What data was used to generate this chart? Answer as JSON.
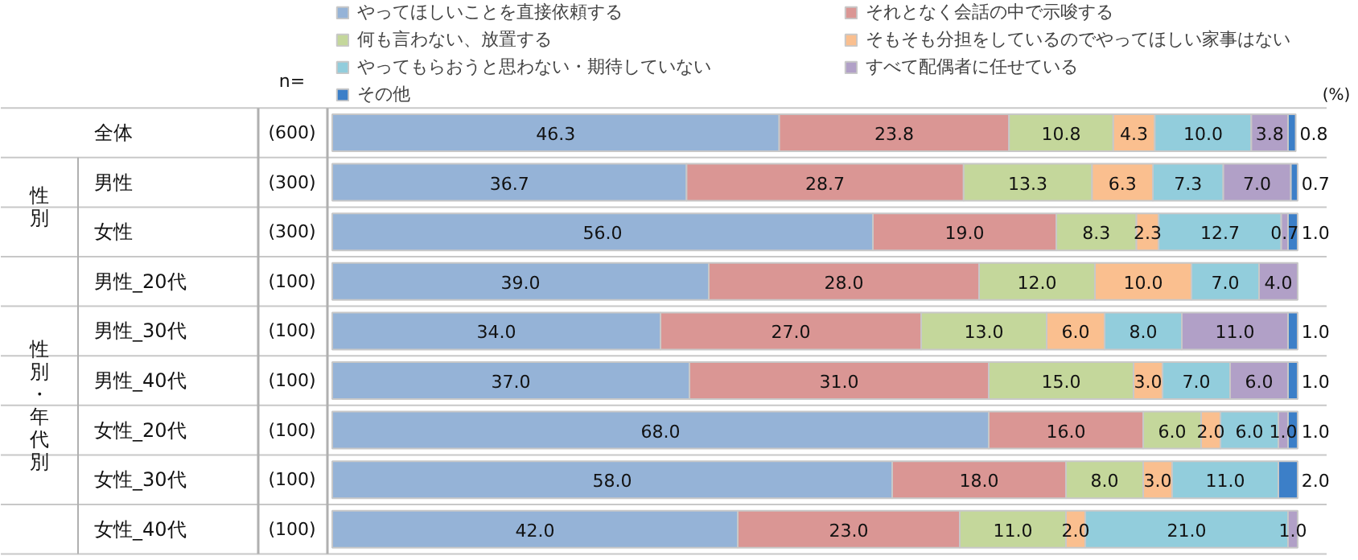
{
  "chart_data": {
    "type": "bar",
    "orientation": "horizontal",
    "stacked": true,
    "legend": "top",
    "categories": [
      "全体",
      "男性",
      "女性",
      "男性_20代",
      "男性_30代",
      "男性_40代",
      "女性_20代",
      "女性_30代",
      "女性_40代"
    ],
    "series": [
      {
        "name": "やってほしいことを直接依頼する",
        "color": "#95b3d7",
        "values": [
          46.3,
          36.7,
          56.0,
          39.0,
          34.0,
          37.0,
          68.0,
          58.0,
          42.0
        ],
        "value_labels": [
          "46.3",
          "36.7",
          "56.0",
          "39.0",
          "34.0",
          "37.0",
          "68.0",
          "58.0",
          "42.0"
        ]
      },
      {
        "name": "それとなく会話の中で示唆する",
        "color": "#da9694",
        "values": [
          23.8,
          28.7,
          19.0,
          28.0,
          27.0,
          31.0,
          16.0,
          18.0,
          23.0
        ],
        "value_labels": [
          "23.8",
          "28.7",
          "19.0",
          "28.0",
          "27.0",
          "31.0",
          "16.0",
          "18.0",
          "23.0"
        ]
      },
      {
        "name": "何も言わない、放置する",
        "color": "#c4d79b",
        "values": [
          10.8,
          13.3,
          8.3,
          12.0,
          13.0,
          15.0,
          6.0,
          8.0,
          11.0
        ],
        "value_labels": [
          "10.8",
          "13.3",
          "8.3",
          "12.0",
          "13.0",
          "15.0",
          "6.0",
          "8.0",
          "11.0"
        ]
      },
      {
        "name": "そもそも分担をしているのでやってほしい家事はない",
        "color": "#fabf8f",
        "values": [
          4.3,
          6.3,
          2.3,
          10.0,
          6.0,
          3.0,
          2.0,
          3.0,
          2.0
        ],
        "value_labels": [
          "4.3",
          "6.3",
          "2.3",
          "10.0",
          "6.0",
          "3.0",
          "2.0",
          "3.0",
          "2.0"
        ]
      },
      {
        "name": "やってもらおうと思わない・期待していない",
        "color": "#92cddc",
        "values": [
          10.0,
          7.3,
          12.7,
          7.0,
          8.0,
          7.0,
          6.0,
          11.0,
          21.0
        ],
        "value_labels": [
          "10.0",
          "7.3",
          "12.7",
          "7.0",
          "8.0",
          "7.0",
          "6.0",
          "11.0",
          "21.0"
        ]
      },
      {
        "name": "すべて配偶者に任せている",
        "color": "#b1a0c7",
        "values": [
          3.8,
          7.0,
          0.7,
          4.0,
          11.0,
          6.0,
          1.0,
          0,
          1.0
        ],
        "value_labels": [
          "3.8",
          "7.0",
          "0.7",
          "4.0",
          "11.0",
          "6.0",
          "1.0",
          null,
          "1.0"
        ]
      },
      {
        "name": "その他",
        "color": "#3c7fc8",
        "values": [
          0.8,
          0.7,
          1.0,
          0,
          1.0,
          1.0,
          1.0,
          2.0,
          0
        ],
        "value_labels": [
          "0.8",
          "0.7",
          "1.0",
          null,
          "1.0",
          "1.0",
          "1.0",
          "2.0",
          null
        ]
      }
    ],
    "annotations": [
      "n=",
      "(%)",
      "(600)",
      "(300)",
      "(300)",
      "(100)",
      "(100)",
      "(100)",
      "(100)",
      "(100)",
      "(100)",
      "性別",
      "性別・年代別"
    ]
  }
}
